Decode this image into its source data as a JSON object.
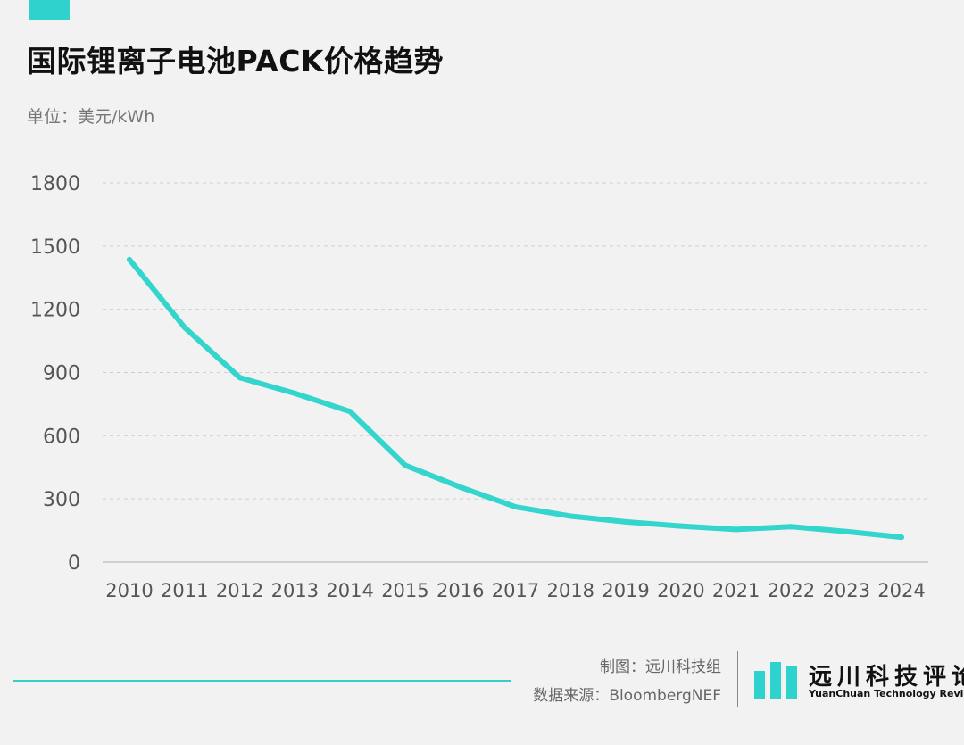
{
  "header": {
    "title": "国际锂离子电池PACK价格趋势",
    "unit": "单位：美元/kWh"
  },
  "chart_data": {
    "type": "line",
    "title": "国际锂离子电池PACK价格趋势",
    "ylabel": "单位：美元/kWh",
    "xlabel": "",
    "categories": [
      "2010",
      "2011",
      "2012",
      "2013",
      "2014",
      "2015",
      "2016",
      "2017",
      "2018",
      "2019",
      "2020",
      "2021",
      "2022",
      "2023",
      "2024"
    ],
    "series": [
      {
        "values": [
          1436,
          1114,
          876,
          801,
          715,
          460,
          356,
          262,
          218,
          191,
          171,
          155,
          168,
          145,
          118
        ]
      }
    ],
    "yticks": [
      0,
      300,
      600,
      900,
      1200,
      1500,
      1800
    ],
    "ylim": [
      0,
      1800
    ],
    "grid": "horizontal dashed",
    "line_color": "#34d5cd"
  },
  "footer": {
    "made_by": "制图：远川科技组",
    "source": "数据来源：BloombergNEF"
  },
  "logo": {
    "name_cn": "远川科技评论",
    "name_en": "YuanChuan Technology Review",
    "color": "#2fd2cc"
  }
}
